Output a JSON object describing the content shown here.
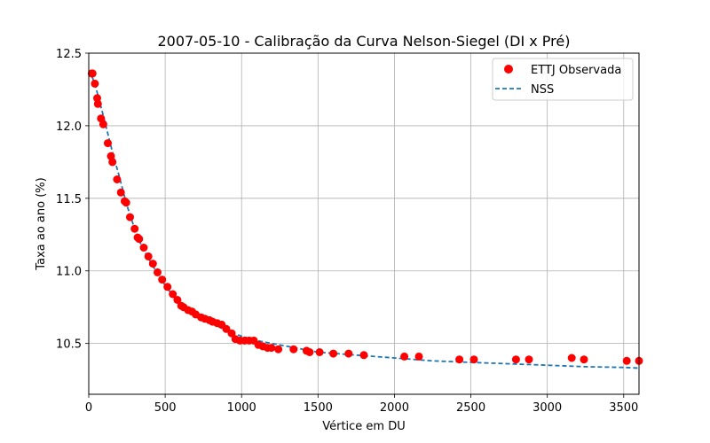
{
  "chart_data": {
    "type": "scatter",
    "title": "2007-05-10 - Calibração da Curva Nelson-Siegel (DI x Pré)",
    "xlabel": "Vértice em DU",
    "ylabel": "Taxa ao ano (%)",
    "xlim": [
      0,
      3600
    ],
    "ylim": [
      10.15,
      12.5
    ],
    "xticks": [
      0,
      500,
      1000,
      1500,
      2000,
      2500,
      3000,
      3500
    ],
    "yticks": [
      10.5,
      11.0,
      11.5,
      12.0,
      12.5
    ],
    "xtick_labels": [
      "0",
      "500",
      "1000",
      "1500",
      "2000",
      "2500",
      "3000",
      "3500"
    ],
    "ytick_labels": [
      "10.5",
      "11.0",
      "11.5",
      "12.0",
      "12.5"
    ],
    "grid": true,
    "legend_position": "top-right",
    "colors": {
      "observed": "#ff0000",
      "fit": "#1f77b4"
    },
    "series": [
      {
        "name": "ETTJ Observada",
        "kind": "scatter",
        "x": [
          20,
          25,
          40,
          55,
          60,
          80,
          95,
          125,
          145,
          155,
          185,
          210,
          235,
          245,
          270,
          300,
          320,
          330,
          360,
          390,
          420,
          450,
          480,
          515,
          550,
          580,
          605,
          620,
          650,
          675,
          700,
          735,
          760,
          790,
          810,
          840,
          870,
          900,
          935,
          960,
          990,
          1020,
          1050,
          1080,
          1110,
          1140,
          1170,
          1195,
          1240,
          1340,
          1425,
          1445,
          1510,
          1600,
          1700,
          1800,
          2065,
          2160,
          2425,
          2520,
          2795,
          2880,
          3160,
          3240,
          3520,
          3600
        ],
        "y": [
          12.36,
          12.36,
          12.29,
          12.19,
          12.15,
          12.05,
          12.01,
          11.88,
          11.79,
          11.75,
          11.63,
          11.54,
          11.48,
          11.47,
          11.37,
          11.29,
          11.23,
          11.22,
          11.16,
          11.1,
          11.05,
          10.99,
          10.94,
          10.89,
          10.84,
          10.8,
          10.76,
          10.75,
          10.73,
          10.72,
          10.7,
          10.68,
          10.67,
          10.66,
          10.65,
          10.64,
          10.63,
          10.6,
          10.57,
          10.53,
          10.52,
          10.52,
          10.52,
          10.52,
          10.49,
          10.48,
          10.47,
          10.47,
          10.46,
          10.46,
          10.45,
          10.44,
          10.44,
          10.43,
          10.43,
          10.42,
          10.41,
          10.41,
          10.39,
          10.39,
          10.39,
          10.39,
          10.4,
          10.39,
          10.38,
          10.38
        ]
      },
      {
        "name": "NSS",
        "kind": "line",
        "style": "dashed",
        "x": [
          0,
          25,
          50,
          100,
          150,
          200,
          250,
          300,
          350,
          400,
          450,
          500,
          550,
          600,
          650,
          700,
          750,
          800,
          900,
          1000,
          1100,
          1200,
          1300,
          1400,
          1500,
          1750,
          2000,
          2250,
          2500,
          2750,
          3000,
          3250,
          3500,
          3600
        ],
        "y": [
          12.38,
          12.33,
          12.25,
          12.05,
          11.84,
          11.65,
          11.45,
          11.29,
          11.16,
          11.07,
          10.98,
          10.9,
          10.83,
          10.77,
          10.73,
          10.7,
          10.67,
          10.64,
          10.59,
          10.55,
          10.52,
          10.5,
          10.48,
          10.46,
          10.44,
          10.42,
          10.4,
          10.38,
          10.37,
          10.36,
          10.35,
          10.34,
          10.335,
          10.33
        ]
      }
    ]
  }
}
